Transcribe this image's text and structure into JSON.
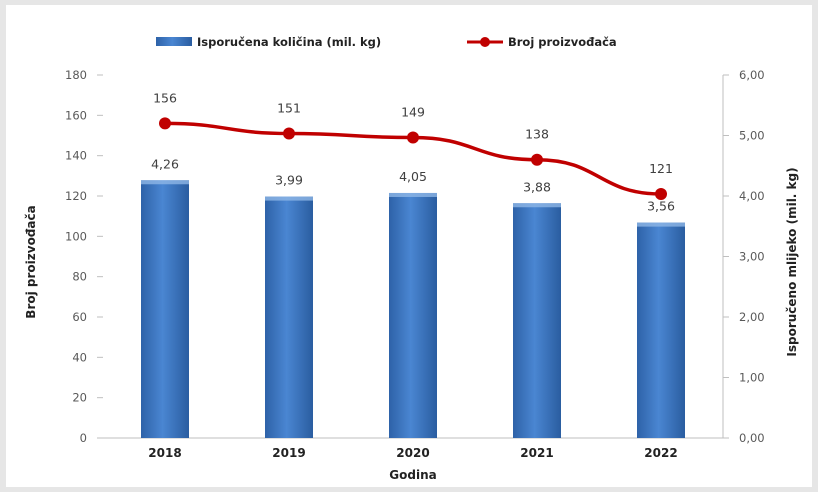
{
  "chart_data": {
    "type": "bar",
    "categories": [
      "2018",
      "2019",
      "2020",
      "2021",
      "2022"
    ],
    "xlabel": "Godina",
    "ylabel_left": "Broj proizvođača",
    "ylabel_right": "Isporučeno mlijeko (mil. kg)",
    "ylim_left": [
      0,
      180
    ],
    "ylim_right": [
      0,
      6
    ],
    "yticks_left": [
      "0",
      "20",
      "40",
      "60",
      "80",
      "100",
      "120",
      "140",
      "160",
      "180"
    ],
    "yticks_right": [
      "0,00",
      "1,00",
      "2,00",
      "3,00",
      "4,00",
      "5,00",
      "6,00"
    ],
    "grid": false,
    "legend_position": "top",
    "series": [
      {
        "name": "Isporučena količina (mil. kg)",
        "type": "bar",
        "axis": "right",
        "color": "#3a75c4",
        "values": [
          4.26,
          3.99,
          4.05,
          3.88,
          3.56
        ],
        "labels": [
          "4,26",
          "3,99",
          "4,05",
          "3,88",
          "3,56"
        ]
      },
      {
        "name": "Broj proizvođača",
        "type": "line",
        "axis": "left",
        "color": "#c00000",
        "values": [
          156,
          151,
          149,
          138,
          121
        ],
        "labels": [
          "156",
          "151",
          "149",
          "138",
          "121"
        ]
      }
    ]
  }
}
